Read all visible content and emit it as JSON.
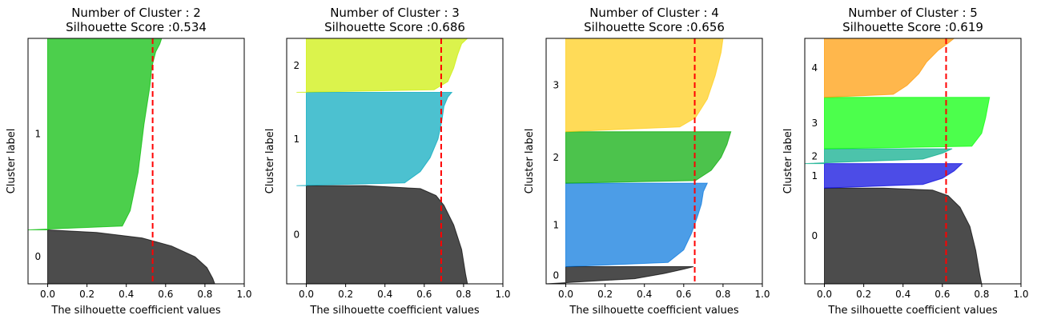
{
  "chart_data": [
    {
      "type": "area",
      "title": "Number of Cluster : 2",
      "subtitle": "Silhouette Score :0.534",
      "xlabel": "The silhouette coefficient values",
      "ylabel": "Cluster label",
      "xlim": [
        -0.1,
        1.0
      ],
      "xticks": [
        "0.0",
        "0.2",
        "0.4",
        "0.6",
        "0.8",
        "1.0"
      ],
      "silhouette_score": 0.534,
      "clusters": [
        {
          "label": "0",
          "color": "#000000",
          "span": [
            0.0,
            0.22
          ],
          "profile": [
            [
              0.0,
              0.85
            ],
            [
              0.1,
              0.84
            ],
            [
              0.3,
              0.81
            ],
            [
              0.5,
              0.75
            ],
            [
              0.7,
              0.63
            ],
            [
              0.85,
              0.48
            ],
            [
              0.95,
              0.25
            ],
            [
              1.0,
              0.0
            ]
          ]
        },
        {
          "label": "1",
          "color": "#00bb00",
          "span": [
            0.22,
            1.0
          ],
          "profile": [
            [
              0.0,
              -0.1
            ],
            [
              0.02,
              0.38
            ],
            [
              0.1,
              0.42
            ],
            [
              0.3,
              0.46
            ],
            [
              0.55,
              0.49
            ],
            [
              0.75,
              0.52
            ],
            [
              0.85,
              0.53
            ],
            [
              0.93,
              0.55
            ],
            [
              0.97,
              0.57
            ],
            [
              1.0,
              0.58
            ]
          ]
        }
      ]
    },
    {
      "type": "area",
      "title": "Number of Cluster : 3",
      "subtitle": "Silhouette Score :0.686",
      "xlabel": "The silhouette coefficient values",
      "ylabel": "Cluster label",
      "xlim": [
        -0.1,
        1.0
      ],
      "xticks": [
        "0.0",
        "0.2",
        "0.4",
        "0.6",
        "0.8",
        "1.0"
      ],
      "silhouette_score": 0.686,
      "clusters": [
        {
          "label": "0",
          "color": "#000000",
          "span": [
            0.0,
            0.4
          ],
          "profile": [
            [
              0.0,
              0.82
            ],
            [
              0.1,
              0.81
            ],
            [
              0.35,
              0.79
            ],
            [
              0.6,
              0.75
            ],
            [
              0.8,
              0.7
            ],
            [
              0.9,
              0.66
            ],
            [
              0.97,
              0.58
            ],
            [
              1.0,
              0.3
            ]
          ]
        },
        {
          "label": "1",
          "color": "#00a6bc",
          "span": [
            0.4,
            0.78
          ],
          "profile": [
            [
              0.0,
              -0.05
            ],
            [
              0.03,
              0.5
            ],
            [
              0.15,
              0.58
            ],
            [
              0.3,
              0.63
            ],
            [
              0.5,
              0.67
            ],
            [
              0.7,
              0.69
            ],
            [
              0.85,
              0.7
            ],
            [
              0.95,
              0.72
            ],
            [
              1.0,
              0.74
            ]
          ]
        },
        {
          "label": "2",
          "color": "#ccee00",
          "span": [
            0.78,
            1.0
          ],
          "profile": [
            [
              0.0,
              -0.05
            ],
            [
              0.05,
              0.65
            ],
            [
              0.2,
              0.72
            ],
            [
              0.45,
              0.75
            ],
            [
              0.7,
              0.77
            ],
            [
              0.9,
              0.79
            ],
            [
              1.0,
              0.82
            ]
          ]
        }
      ]
    },
    {
      "type": "area",
      "title": "Number of Cluster : 4",
      "subtitle": "Silhouette Score :0.656",
      "xlabel": "The silhouette coefficient values",
      "ylabel": "Cluster label",
      "xlim": [
        -0.1,
        1.0
      ],
      "xticks": [
        "0.0",
        "0.2",
        "0.4",
        "0.6",
        "0.8",
        "1.0"
      ],
      "silhouette_score": 0.656,
      "clusters": [
        {
          "label": "0",
          "color": "#000000",
          "span": [
            0.0,
            0.07
          ],
          "profile": [
            [
              0.0,
              -0.1
            ],
            [
              0.3,
              0.35
            ],
            [
              0.6,
              0.5
            ],
            [
              0.85,
              0.6
            ],
            [
              1.0,
              0.65
            ]
          ]
        },
        {
          "label": "1",
          "color": "#0073dd",
          "span": [
            0.07,
            0.41
          ],
          "profile": [
            [
              0.0,
              0.0
            ],
            [
              0.05,
              0.52
            ],
            [
              0.2,
              0.6
            ],
            [
              0.4,
              0.64
            ],
            [
              0.6,
              0.67
            ],
            [
              0.75,
              0.69
            ],
            [
              0.9,
              0.7
            ],
            [
              1.0,
              0.72
            ]
          ]
        },
        {
          "label": "2",
          "color": "#00aa00",
          "span": [
            0.41,
            0.62
          ],
          "profile": [
            [
              0.0,
              0.0
            ],
            [
              0.05,
              0.66
            ],
            [
              0.25,
              0.74
            ],
            [
              0.5,
              0.79
            ],
            [
              0.75,
              0.82
            ],
            [
              1.0,
              0.84
            ]
          ]
        },
        {
          "label": "3",
          "color": "#ffcc11",
          "span": [
            0.62,
            1.0
          ],
          "profile": [
            [
              0.0,
              0.0
            ],
            [
              0.05,
              0.58
            ],
            [
              0.15,
              0.66
            ],
            [
              0.35,
              0.72
            ],
            [
              0.6,
              0.76
            ],
            [
              0.85,
              0.79
            ],
            [
              1.0,
              0.8
            ]
          ]
        }
      ]
    },
    {
      "type": "area",
      "title": "Number of Cluster : 5",
      "subtitle": "Silhouette Score :0.619",
      "xlabel": "The silhouette coefficient values",
      "ylabel": "Cluster label",
      "xlim": [
        -0.1,
        1.0
      ],
      "xticks": [
        "0.0",
        "0.2",
        "0.4",
        "0.6",
        "0.8",
        "1.0"
      ],
      "silhouette_score": 0.619,
      "clusters": [
        {
          "label": "0",
          "color": "#000000",
          "span": [
            0.0,
            0.39
          ],
          "profile": [
            [
              0.0,
              0.8
            ],
            [
              0.1,
              0.79
            ],
            [
              0.35,
              0.77
            ],
            [
              0.6,
              0.74
            ],
            [
              0.8,
              0.69
            ],
            [
              0.92,
              0.63
            ],
            [
              0.98,
              0.55
            ],
            [
              1.0,
              0.3
            ]
          ]
        },
        {
          "label": "1",
          "color": "#0000dd",
          "span": [
            0.39,
            0.49
          ],
          "profile": [
            [
              0.0,
              0.0
            ],
            [
              0.15,
              0.5
            ],
            [
              0.4,
              0.6
            ],
            [
              0.7,
              0.66
            ],
            [
              1.0,
              0.7
            ]
          ]
        },
        {
          "label": "2",
          "color": "#00aa88",
          "span": [
            0.49,
            0.55
          ],
          "profile": [
            [
              0.0,
              -0.1
            ],
            [
              0.3,
              0.5
            ],
            [
              0.7,
              0.6
            ],
            [
              1.0,
              0.65
            ]
          ]
        },
        {
          "label": "3",
          "color": "#00ff00",
          "span": [
            0.55,
            0.76
          ],
          "profile": [
            [
              0.0,
              0.0
            ],
            [
              0.05,
              0.75
            ],
            [
              0.3,
              0.8
            ],
            [
              0.6,
              0.82
            ],
            [
              1.0,
              0.84
            ]
          ]
        },
        {
          "label": "4",
          "color": "#ff9900",
          "span": [
            0.76,
            1.0
          ],
          "profile": [
            [
              0.0,
              0.0
            ],
            [
              0.05,
              0.35
            ],
            [
              0.2,
              0.42
            ],
            [
              0.4,
              0.48
            ],
            [
              0.6,
              0.52
            ],
            [
              0.8,
              0.58
            ],
            [
              0.92,
              0.63
            ],
            [
              1.0,
              0.66
            ]
          ]
        }
      ]
    }
  ]
}
